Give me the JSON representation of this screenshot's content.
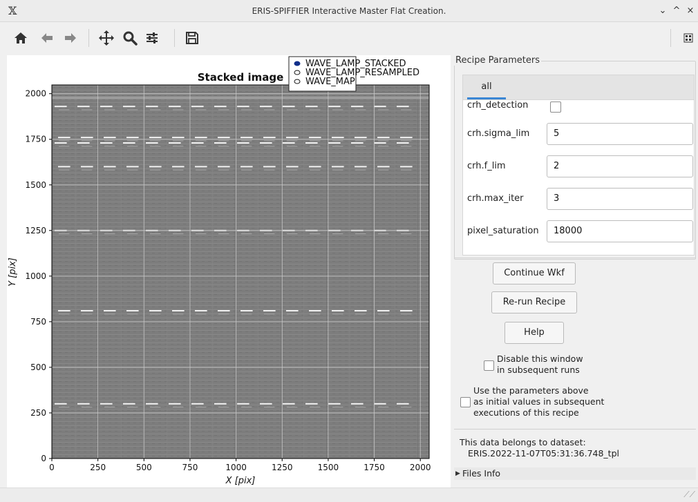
{
  "window": {
    "title": "ERIS-SPIFFIER Interactive Master Flat Creation.",
    "controls": [
      "⌄",
      "^",
      "×"
    ]
  },
  "toolbar": {
    "home_icon": "home-icon",
    "back_icon": "back-arrow-icon",
    "forward_icon": "forward-arrow-icon",
    "pan_icon": "pan-icon",
    "zoom_icon": "zoom-icon",
    "configure_icon": "configure-subplots-icon",
    "save_icon": "save-icon",
    "options_icon": "figure-options-icon"
  },
  "plot": {
    "title": "Stacked image",
    "xlabel": "X [pix]",
    "ylabel": "Y [pix]",
    "x_ticks": [
      "0",
      "250",
      "500",
      "750",
      "1000",
      "1250",
      "1500",
      "1750",
      "2000"
    ],
    "y_ticks": [
      "0",
      "250",
      "500",
      "750",
      "1000",
      "1250",
      "1500",
      "1750",
      "2000"
    ],
    "legend": [
      {
        "label": "WAVE_LAMP_STACKED",
        "selected": true
      },
      {
        "label": "WAVE_LAMP_RESAMPLED",
        "selected": false
      },
      {
        "label": "WAVE_MAP",
        "selected": false
      }
    ]
  },
  "chart_data": {
    "type": "heatmap",
    "title": "Stacked image",
    "xlabel": "X [pix]",
    "ylabel": "Y [pix]",
    "xlim": [
      0,
      2048
    ],
    "ylim": [
      0,
      2048
    ],
    "grid": true,
    "legend_placement": "top-center",
    "series": [
      {
        "name": "WAVE_LAMP_STACKED"
      },
      {
        "name": "WAVE_LAMP_RESAMPLED"
      },
      {
        "name": "WAVE_MAP"
      }
    ],
    "bright_line_rows": [
      300,
      810,
      1250,
      1600,
      1730,
      1760,
      1930
    ]
  },
  "params": {
    "group_title": "Recipe Parameters",
    "tab_label": "all",
    "rows": [
      {
        "label": "crh_detection",
        "type": "checkbox",
        "checked": false
      },
      {
        "label": "crh.sigma_lim",
        "value": "5"
      },
      {
        "label": "crh.f_lim",
        "value": "2"
      },
      {
        "label": "crh.max_iter",
        "value": "3"
      },
      {
        "label": "pixel_saturation",
        "value": "18000"
      }
    ]
  },
  "actions": {
    "continue": "Continue Wkf",
    "rerun": "Re-run Recipe",
    "help": "Help"
  },
  "options": {
    "disable_line1": "Disable this window",
    "disable_line2": "in subsequent runs",
    "use_line1": "Use the parameters above",
    "use_line2": "as initial values in subsequent",
    "use_line3": "executions of this recipe"
  },
  "dataset": {
    "label": "This data belongs to dataset:",
    "name": "ERIS.2022-11-07T05:31:36.748_tpl"
  },
  "files": {
    "label": "Files Info"
  }
}
